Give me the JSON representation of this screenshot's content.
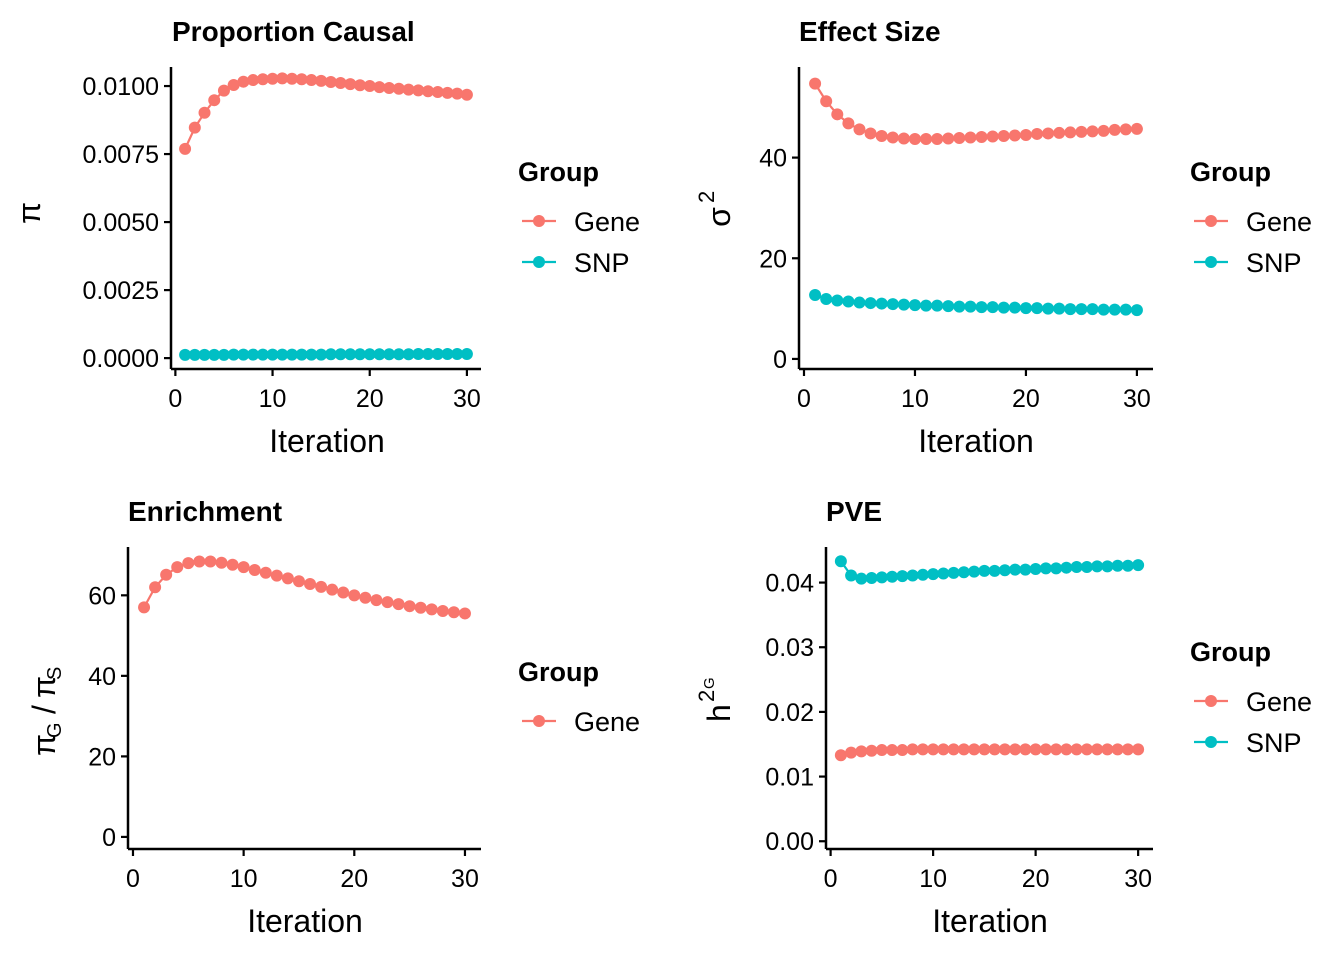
{
  "colors": {
    "Gene": "#F8766D",
    "SNP": "#00BFC4"
  },
  "chart_data": [
    {
      "type": "line",
      "title": "Proportion Causal",
      "xlabel": "Iteration",
      "ylabel": "π",
      "ylabel_parts": {
        "main": "π",
        "sup": "",
        "sub": ""
      },
      "xlim": [
        0,
        30
      ],
      "ylim": [
        -0.0004,
        0.0107
      ],
      "xticks": [
        0,
        10,
        20,
        30
      ],
      "xtick_labels": [
        "0",
        "10",
        "20",
        "30"
      ],
      "yticks": [
        0,
        0.0025,
        0.005,
        0.0075,
        0.01
      ],
      "ytick_labels": [
        "0.0000",
        "0.0025",
        "0.0050",
        "0.0075",
        "0.0100"
      ],
      "legend": {
        "title": "Group",
        "entries": [
          "Gene",
          "SNP"
        ],
        "position": "right"
      },
      "x": [
        1,
        2,
        3,
        4,
        5,
        6,
        7,
        8,
        9,
        10,
        11,
        12,
        13,
        14,
        15,
        16,
        17,
        18,
        19,
        20,
        21,
        22,
        23,
        24,
        25,
        26,
        27,
        28,
        29,
        30
      ],
      "series": [
        {
          "name": "Gene",
          "values": [
            0.00769,
            0.00847,
            0.00902,
            0.00948,
            0.00983,
            0.01004,
            0.01016,
            0.01022,
            0.01025,
            0.01027,
            0.01028,
            0.01027,
            0.01025,
            0.01022,
            0.01019,
            0.01015,
            0.01011,
            0.01007,
            0.01003,
            0.01,
            0.00996,
            0.00993,
            0.0099,
            0.00987,
            0.00984,
            0.00981,
            0.00978,
            0.00975,
            0.00972,
            0.00968
          ]
        },
        {
          "name": "SNP",
          "values": [
            0.00012,
            0.00012,
            0.00012,
            0.00012,
            0.00012,
            0.00013,
            0.00013,
            0.00013,
            0.00013,
            0.00013,
            0.00013,
            0.00013,
            0.00013,
            0.00013,
            0.00013,
            0.00014,
            0.00014,
            0.00014,
            0.00014,
            0.00014,
            0.00014,
            0.00014,
            0.00014,
            0.00014,
            0.00015,
            0.00015,
            0.00015,
            0.00015,
            0.00015,
            0.00015
          ]
        }
      ]
    },
    {
      "type": "line",
      "title": "Effect Size",
      "xlabel": "Iteration",
      "ylabel": "σ²",
      "ylabel_parts": {
        "main": "σ",
        "sup": "2",
        "sub": ""
      },
      "xlim": [
        0,
        30
      ],
      "ylim": [
        -2,
        58
      ],
      "xticks": [
        0,
        10,
        20,
        30
      ],
      "xtick_labels": [
        "0",
        "10",
        "20",
        "30"
      ],
      "yticks": [
        0,
        20,
        40
      ],
      "ytick_labels": [
        "0",
        "20",
        "40"
      ],
      "legend": {
        "title": "Group",
        "entries": [
          "Gene",
          "SNP"
        ],
        "position": "right"
      },
      "x": [
        1,
        2,
        3,
        4,
        5,
        6,
        7,
        8,
        9,
        10,
        11,
        12,
        13,
        14,
        15,
        16,
        17,
        18,
        19,
        20,
        21,
        22,
        23,
        24,
        25,
        26,
        27,
        28,
        29,
        30
      ],
      "series": [
        {
          "name": "Gene",
          "values": [
            54.7,
            51.2,
            48.6,
            46.8,
            45.6,
            44.8,
            44.3,
            44.0,
            43.8,
            43.7,
            43.7,
            43.7,
            43.8,
            43.9,
            44.0,
            44.1,
            44.2,
            44.3,
            44.4,
            44.5,
            44.7,
            44.8,
            44.9,
            45.0,
            45.1,
            45.2,
            45.3,
            45.5,
            45.6,
            45.7
          ]
        },
        {
          "name": "SNP",
          "values": [
            12.7,
            11.9,
            11.6,
            11.4,
            11.2,
            11.1,
            11.0,
            10.9,
            10.8,
            10.7,
            10.6,
            10.6,
            10.5,
            10.4,
            10.4,
            10.3,
            10.3,
            10.2,
            10.2,
            10.1,
            10.1,
            10.0,
            10.0,
            9.9,
            9.9,
            9.9,
            9.8,
            9.8,
            9.8,
            9.7
          ]
        }
      ]
    },
    {
      "type": "line",
      "title": "Enrichment",
      "xlabel": "Iteration",
      "ylabel": "πG/πS",
      "ylabel_parts": {
        "main": "π",
        "sub": "G",
        "slash": "/",
        "main2": "π",
        "sub2": "S"
      },
      "xlim": [
        0,
        30
      ],
      "ylim": [
        -3,
        72
      ],
      "xticks": [
        0,
        10,
        20,
        30
      ],
      "xtick_labels": [
        "0",
        "10",
        "20",
        "30"
      ],
      "yticks": [
        0,
        20,
        40,
        60
      ],
      "ytick_labels": [
        "0",
        "20",
        "40",
        "60"
      ],
      "legend": {
        "title": "Group",
        "entries": [
          "Gene"
        ],
        "position": "right"
      },
      "x": [
        1,
        2,
        3,
        4,
        5,
        6,
        7,
        8,
        9,
        10,
        11,
        12,
        13,
        14,
        15,
        16,
        17,
        18,
        19,
        20,
        21,
        22,
        23,
        24,
        25,
        26,
        27,
        28,
        29,
        30
      ],
      "series": [
        {
          "name": "Gene",
          "values": [
            57.0,
            62.0,
            65.1,
            67.0,
            68.0,
            68.4,
            68.4,
            68.1,
            67.6,
            67.0,
            66.3,
            65.6,
            64.9,
            64.2,
            63.5,
            62.8,
            62.1,
            61.4,
            60.7,
            60.0,
            59.4,
            58.8,
            58.3,
            57.8,
            57.3,
            56.9,
            56.5,
            56.1,
            55.8,
            55.5
          ]
        }
      ]
    },
    {
      "type": "line",
      "title": "PVE",
      "xlabel": "Iteration",
      "ylabel": "h²G",
      "ylabel_parts": {
        "main": "h",
        "sup": "2",
        "sup_sub": "G"
      },
      "xlim": [
        0,
        30
      ],
      "ylim": [
        -0.0012,
        0.0455
      ],
      "xticks": [
        0,
        10,
        20,
        30
      ],
      "xtick_labels": [
        "0",
        "10",
        "20",
        "30"
      ],
      "yticks": [
        0,
        0.01,
        0.02,
        0.03,
        0.04
      ],
      "ytick_labels": [
        "0.00",
        "0.01",
        "0.02",
        "0.03",
        "0.04"
      ],
      "legend": {
        "title": "Group",
        "entries": [
          "Gene",
          "SNP"
        ],
        "position": "right"
      },
      "x": [
        1,
        2,
        3,
        4,
        5,
        6,
        7,
        8,
        9,
        10,
        11,
        12,
        13,
        14,
        15,
        16,
        17,
        18,
        19,
        20,
        21,
        22,
        23,
        24,
        25,
        26,
        27,
        28,
        29,
        30
      ],
      "series": [
        {
          "name": "Gene",
          "values": [
            0.0133,
            0.0137,
            0.0139,
            0.014,
            0.0141,
            0.0141,
            0.0141,
            0.0142,
            0.0142,
            0.0142,
            0.0142,
            0.0142,
            0.0142,
            0.0142,
            0.0142,
            0.0142,
            0.0142,
            0.0142,
            0.0142,
            0.0142,
            0.0142,
            0.0142,
            0.0142,
            0.0142,
            0.0142,
            0.0142,
            0.0142,
            0.0142,
            0.0142,
            0.0142
          ]
        },
        {
          "name": "SNP",
          "values": [
            0.0433,
            0.0411,
            0.0406,
            0.0407,
            0.0408,
            0.0409,
            0.041,
            0.0411,
            0.0412,
            0.0413,
            0.0414,
            0.0415,
            0.0416,
            0.0417,
            0.0418,
            0.0418,
            0.0419,
            0.042,
            0.042,
            0.0421,
            0.0422,
            0.0422,
            0.0423,
            0.0424,
            0.0424,
            0.0425,
            0.0425,
            0.0426,
            0.0426,
            0.0427
          ]
        }
      ]
    }
  ]
}
